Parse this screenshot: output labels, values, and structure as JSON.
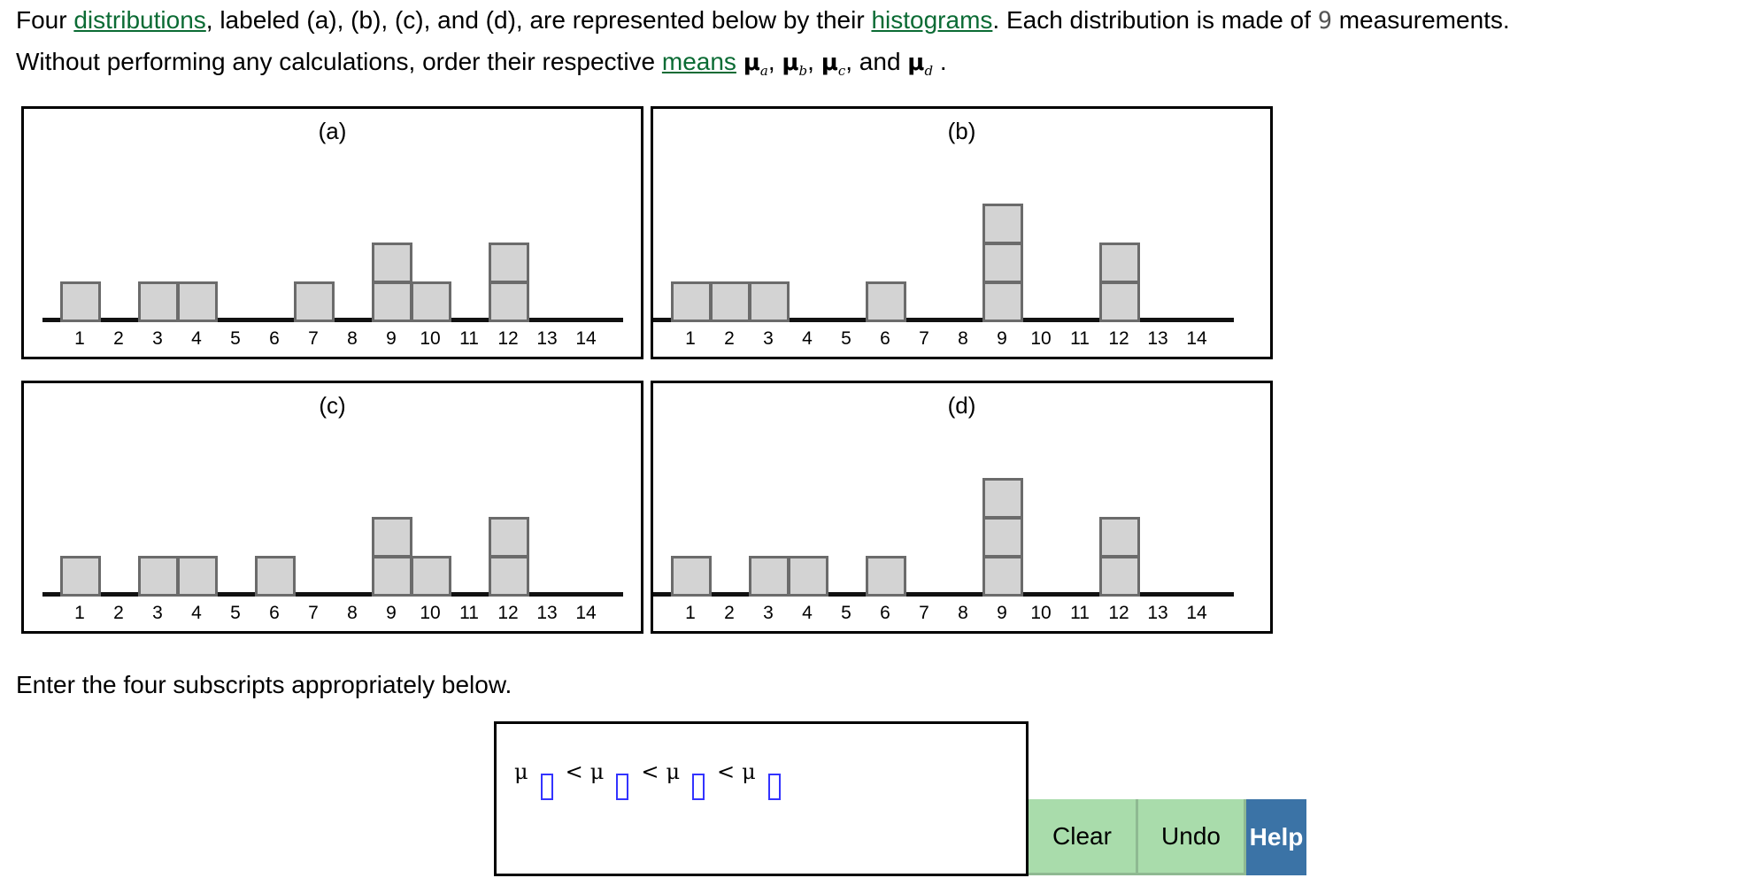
{
  "prompt": {
    "line1_parts": [
      "Four ",
      "distributions",
      ", labeled (a), (b), (c), and (d), are represented below by their ",
      "histograms",
      ". Each distribution is made of ",
      "9",
      " measurements."
    ],
    "line2_parts": [
      "Without performing any calculations, order their respective ",
      "means",
      " ",
      ", ",
      ", ",
      ", and ",
      " ."
    ],
    "mu_symbol": "μ",
    "subscripts": [
      "a",
      "b",
      "c",
      "d"
    ],
    "links": [
      "distributions",
      "histograms",
      "means"
    ],
    "measurement_count": "9"
  },
  "instruction": "Enter the four subscripts appropriately below.",
  "answer": {
    "mu_symbol": "μ",
    "less_than": "<",
    "slots": [
      "",
      "",
      "",
      ""
    ]
  },
  "buttons": {
    "clear": "Clear",
    "undo": "Undo",
    "help": "Help"
  },
  "colors": {
    "link": "#0b6b34",
    "block_fill": "#d3d3d3",
    "block_border": "#6b6b6b",
    "slot_border": "#3333ff",
    "button_green": "#a9dcab",
    "button_blue": "#3b73a6"
  },
  "chart_data": [
    {
      "type": "bar",
      "title": "(a)",
      "categories": [
        1,
        2,
        3,
        4,
        5,
        6,
        7,
        8,
        9,
        10,
        11,
        12,
        13,
        14
      ],
      "values": [
        1,
        0,
        1,
        1,
        0,
        0,
        1,
        0,
        2,
        1,
        0,
        2,
        0,
        0
      ],
      "xlabel": "",
      "ylabel": "",
      "ylim": [
        0,
        3
      ],
      "grid": false
    },
    {
      "type": "bar",
      "title": "(b)",
      "categories": [
        1,
        2,
        3,
        4,
        5,
        6,
        7,
        8,
        9,
        10,
        11,
        12,
        13,
        14
      ],
      "values": [
        1,
        1,
        1,
        0,
        0,
        1,
        0,
        0,
        3,
        0,
        0,
        2,
        0,
        0
      ],
      "xlabel": "",
      "ylabel": "",
      "ylim": [
        0,
        3
      ],
      "grid": false
    },
    {
      "type": "bar",
      "title": "(c)",
      "categories": [
        1,
        2,
        3,
        4,
        5,
        6,
        7,
        8,
        9,
        10,
        11,
        12,
        13,
        14
      ],
      "values": [
        1,
        0,
        1,
        1,
        0,
        1,
        0,
        0,
        2,
        1,
        0,
        2,
        0,
        0
      ],
      "xlabel": "",
      "ylabel": "",
      "ylim": [
        0,
        3
      ],
      "grid": false
    },
    {
      "type": "bar",
      "title": "(d)",
      "categories": [
        1,
        2,
        3,
        4,
        5,
        6,
        7,
        8,
        9,
        10,
        11,
        12,
        13,
        14
      ],
      "values": [
        1,
        0,
        1,
        1,
        0,
        1,
        0,
        0,
        3,
        0,
        0,
        2,
        0,
        0
      ],
      "xlabel": "",
      "ylabel": "",
      "ylim": [
        0,
        3
      ],
      "grid": false
    }
  ]
}
